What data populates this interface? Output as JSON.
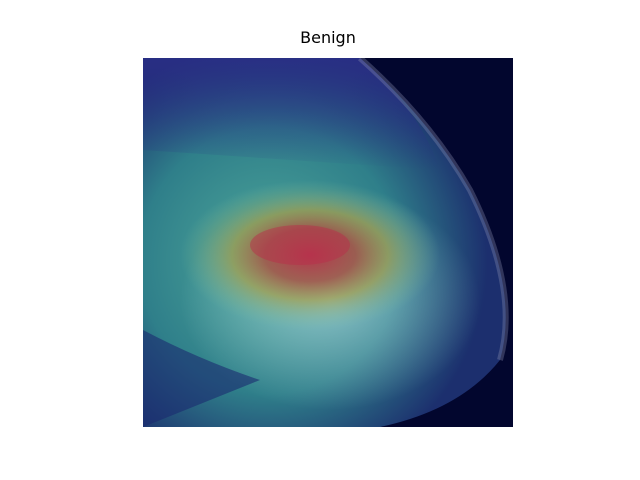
{
  "title": "Benign"
}
